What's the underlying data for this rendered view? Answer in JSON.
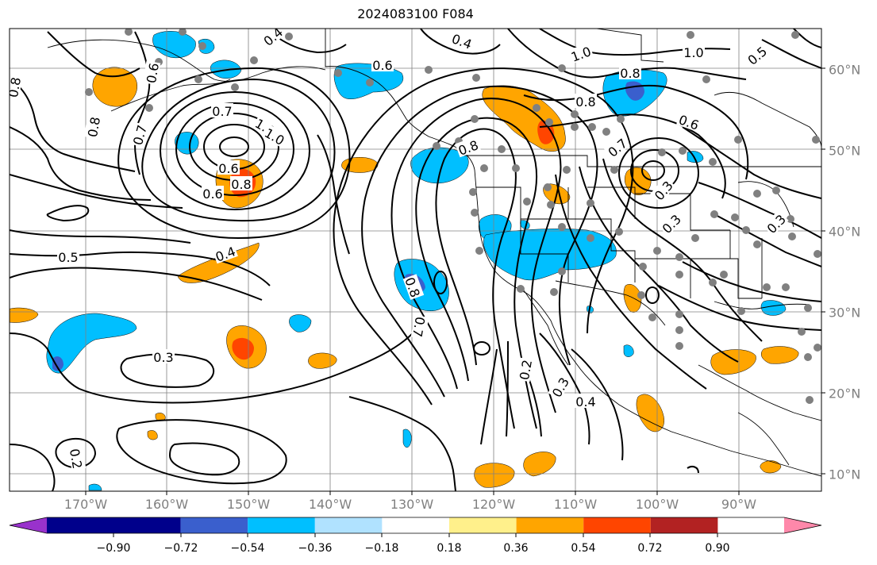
{
  "title": "2024083100 F084",
  "map": {
    "lon_labels": [
      "170°W",
      "160°W",
      "150°W",
      "140°W",
      "130°W",
      "120°W",
      "110°W",
      "100°W",
      "90°W"
    ],
    "lat_labels": [
      "60°N",
      "50°N",
      "40°N",
      "30°N",
      "20°N",
      "10°N"
    ],
    "contour_labels": [
      "0.4",
      "0.4",
      "0.6",
      "0.6",
      "0.7",
      "0.7",
      "0.8",
      "0.8",
      "1.0",
      "1.0",
      "0.6",
      "0.8",
      "0.6",
      "0.5",
      "0.4",
      "0.3",
      "0.2",
      "0.8",
      "0.7",
      "0.2",
      "0.3",
      "0.4",
      "0.8",
      "0.8",
      "0.8",
      "1.0",
      "0.5",
      "0.6",
      "0.3",
      "0.3",
      "0.3",
      "0.7",
      "1.0"
    ]
  },
  "colorbar": {
    "colors": [
      "#9932cc",
      "#00008b",
      "#3a5fcd",
      "#00bfff",
      "#b0e2ff",
      "#ffffff",
      "#fff08b",
      "#ffa500",
      "#ff4500",
      "#b22222",
      "#ff88aa"
    ],
    "tick_labels": [
      "−0.90",
      "−0.72",
      "−0.54",
      "−0.36",
      "−0.18",
      "0.18",
      "0.36",
      "0.54",
      "0.72",
      "0.90"
    ]
  },
  "colors": {
    "contour": "#000000",
    "grid": "#808080",
    "station": "#808080",
    "positive_anomaly": "#ffa500",
    "negative_anomaly": "#00bfff"
  }
}
